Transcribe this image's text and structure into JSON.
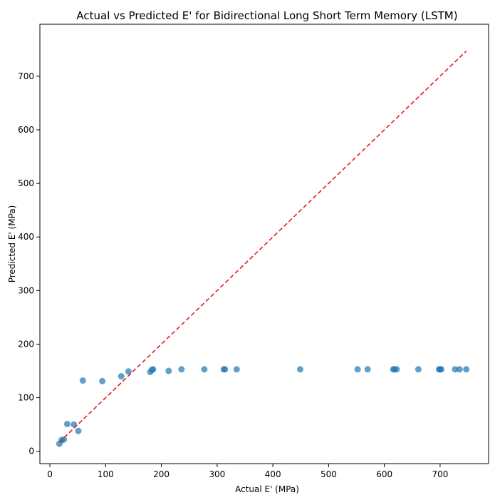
{
  "chart_data": {
    "type": "scatter",
    "title": "Actual vs Predicted E' for Bidirectional Long Short Term Memory (LSTM)",
    "xlabel": "Actual E' (MPa)",
    "ylabel": "Predicted E' (MPa)",
    "xlim": [
      -18,
      787
    ],
    "ylim": [
      -23,
      797
    ],
    "xticks": [
      0,
      100,
      200,
      300,
      400,
      500,
      600,
      700
    ],
    "yticks": [
      0,
      100,
      200,
      300,
      400,
      500,
      600,
      700
    ],
    "grid": false,
    "point_color": "#1f77b4",
    "point_alpha": 0.7,
    "reference_line": {
      "style": "dashed",
      "color": "#e41a1c",
      "from": [
        17,
        17
      ],
      "to": [
        747,
        747
      ]
    },
    "points": [
      {
        "x": 17,
        "y": 14
      },
      {
        "x": 21,
        "y": 21
      },
      {
        "x": 25,
        "y": 22
      },
      {
        "x": 31,
        "y": 51
      },
      {
        "x": 43,
        "y": 50
      },
      {
        "x": 51,
        "y": 38
      },
      {
        "x": 59,
        "y": 132
      },
      {
        "x": 94,
        "y": 131
      },
      {
        "x": 128,
        "y": 140
      },
      {
        "x": 141,
        "y": 149
      },
      {
        "x": 180,
        "y": 148
      },
      {
        "x": 183,
        "y": 152
      },
      {
        "x": 185,
        "y": 153
      },
      {
        "x": 213,
        "y": 150
      },
      {
        "x": 236,
        "y": 153
      },
      {
        "x": 277,
        "y": 153
      },
      {
        "x": 312,
        "y": 153
      },
      {
        "x": 314,
        "y": 153
      },
      {
        "x": 335,
        "y": 153
      },
      {
        "x": 449,
        "y": 153
      },
      {
        "x": 552,
        "y": 153
      },
      {
        "x": 570,
        "y": 153
      },
      {
        "x": 616,
        "y": 153
      },
      {
        "x": 618,
        "y": 153
      },
      {
        "x": 622,
        "y": 153
      },
      {
        "x": 661,
        "y": 153
      },
      {
        "x": 698,
        "y": 153
      },
      {
        "x": 700,
        "y": 153
      },
      {
        "x": 702,
        "y": 153
      },
      {
        "x": 727,
        "y": 153
      },
      {
        "x": 735,
        "y": 153
      },
      {
        "x": 747,
        "y": 153
      }
    ]
  }
}
